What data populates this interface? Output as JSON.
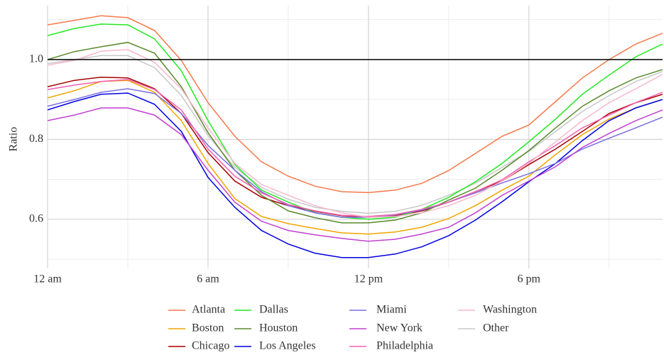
{
  "chart_data": {
    "type": "line",
    "y_label": "Ratio",
    "x": [
      0,
      1,
      2,
      3,
      4,
      5,
      6,
      7,
      8,
      9,
      10,
      11,
      12,
      13,
      14,
      15,
      16,
      17,
      18,
      19,
      20,
      21,
      22,
      23
    ],
    "xlim": [
      0,
      23
    ],
    "xticks": [
      {
        "value": 0,
        "label": "12 am"
      },
      {
        "value": 6,
        "label": "6 am"
      },
      {
        "value": 12,
        "label": "12 pm"
      },
      {
        "value": 18,
        "label": "6 pm"
      }
    ],
    "xminor": [
      3,
      9,
      15,
      21
    ],
    "ylim": [
      0.477,
      1.135
    ],
    "yticks": [
      0.6,
      0.8,
      {
        "value": 1.0,
        "label": "1.0"
      }
    ],
    "yminor": [
      0.5,
      0.7,
      0.9,
      1.1
    ],
    "hline": 1,
    "grid": true,
    "legend": "bottom",
    "series": [
      {
        "name": "Other",
        "color": "#c8c8c8",
        "values": [
          0.99,
          1.0,
          1.01,
          1.01,
          0.98,
          0.91,
          0.81,
          0.73,
          0.68,
          0.65,
          0.63,
          0.62,
          0.615,
          0.62,
          0.635,
          0.66,
          0.69,
          0.73,
          0.77,
          0.82,
          0.87,
          0.91,
          0.945,
          0.97
        ]
      },
      {
        "name": "Atlanta",
        "color": "#f4794a",
        "values": [
          1.087,
          1.098,
          1.11,
          1.105,
          1.073,
          0.998,
          0.892,
          0.808,
          0.744,
          0.708,
          0.683,
          0.669,
          0.667,
          0.673,
          0.69,
          0.722,
          0.765,
          0.808,
          0.836,
          0.895,
          0.954,
          1.0,
          1.039,
          1.066
        ]
      },
      {
        "name": "Boston",
        "color": "#f0a500",
        "values": [
          0.904,
          0.922,
          0.945,
          0.948,
          0.918,
          0.847,
          0.74,
          0.652,
          0.607,
          0.589,
          0.577,
          0.566,
          0.563,
          0.568,
          0.58,
          0.602,
          0.634,
          0.673,
          0.708,
          0.762,
          0.812,
          0.851,
          0.879,
          0.9
        ]
      },
      {
        "name": "Chicago",
        "color": "#a50000",
        "values": [
          0.932,
          0.948,
          0.956,
          0.954,
          0.927,
          0.865,
          0.767,
          0.696,
          0.655,
          0.634,
          0.62,
          0.609,
          0.605,
          0.609,
          0.621,
          0.643,
          0.669,
          0.696,
          0.737,
          0.776,
          0.82,
          0.865,
          0.892,
          0.913
        ]
      },
      {
        "name": "Dallas",
        "color": "#22e822",
        "values": [
          1.06,
          1.078,
          1.089,
          1.087,
          1.052,
          0.972,
          0.847,
          0.737,
          0.673,
          0.643,
          0.616,
          0.605,
          0.6,
          0.605,
          0.625,
          0.655,
          0.694,
          0.74,
          0.794,
          0.851,
          0.913,
          0.961,
          1.007,
          1.039
        ]
      },
      {
        "name": "Houston",
        "color": "#5a8a2e",
        "values": [
          1.0,
          1.02,
          1.032,
          1.043,
          1.016,
          0.932,
          0.817,
          0.723,
          0.66,
          0.621,
          0.604,
          0.591,
          0.591,
          0.598,
          0.616,
          0.648,
          0.678,
          0.723,
          0.772,
          0.829,
          0.883,
          0.922,
          0.954,
          0.975
        ]
      },
      {
        "name": "Los Angeles",
        "color": "#0000e0",
        "values": [
          0.874,
          0.895,
          0.913,
          0.916,
          0.888,
          0.82,
          0.705,
          0.63,
          0.572,
          0.538,
          0.515,
          0.504,
          0.504,
          0.513,
          0.531,
          0.559,
          0.598,
          0.644,
          0.694,
          0.74,
          0.797,
          0.847,
          0.879,
          0.9
        ]
      },
      {
        "name": "Miami",
        "color": "#7a6ee0",
        "values": [
          0.883,
          0.9,
          0.918,
          0.927,
          0.915,
          0.865,
          0.785,
          0.723,
          0.669,
          0.634,
          0.616,
          0.605,
          0.605,
          0.611,
          0.623,
          0.643,
          0.666,
          0.691,
          0.714,
          0.74,
          0.776,
          0.803,
          0.829,
          0.856
        ]
      },
      {
        "name": "New York",
        "color": "#c040d0",
        "values": [
          0.847,
          0.861,
          0.879,
          0.879,
          0.861,
          0.812,
          0.723,
          0.643,
          0.595,
          0.572,
          0.561,
          0.552,
          0.545,
          0.55,
          0.563,
          0.58,
          0.616,
          0.66,
          0.696,
          0.732,
          0.78,
          0.815,
          0.847,
          0.874
        ]
      },
      {
        "name": "Philadelphia",
        "color": "#f060b0",
        "values": [
          0.925,
          0.936,
          0.945,
          0.95,
          0.925,
          0.874,
          0.776,
          0.708,
          0.666,
          0.637,
          0.621,
          0.61,
          0.607,
          0.612,
          0.625,
          0.643,
          0.669,
          0.699,
          0.744,
          0.785,
          0.829,
          0.861,
          0.892,
          0.918
        ]
      },
      {
        "name": "Washington",
        "color": "#f8b8cc",
        "values": [
          0.986,
          0.998,
          1.021,
          1.025,
          0.993,
          0.927,
          0.829,
          0.74,
          0.687,
          0.66,
          0.634,
          0.616,
          0.605,
          0.607,
          0.616,
          0.634,
          0.66,
          0.696,
          0.74,
          0.794,
          0.847,
          0.892,
          0.927,
          0.963
        ]
      }
    ]
  }
}
